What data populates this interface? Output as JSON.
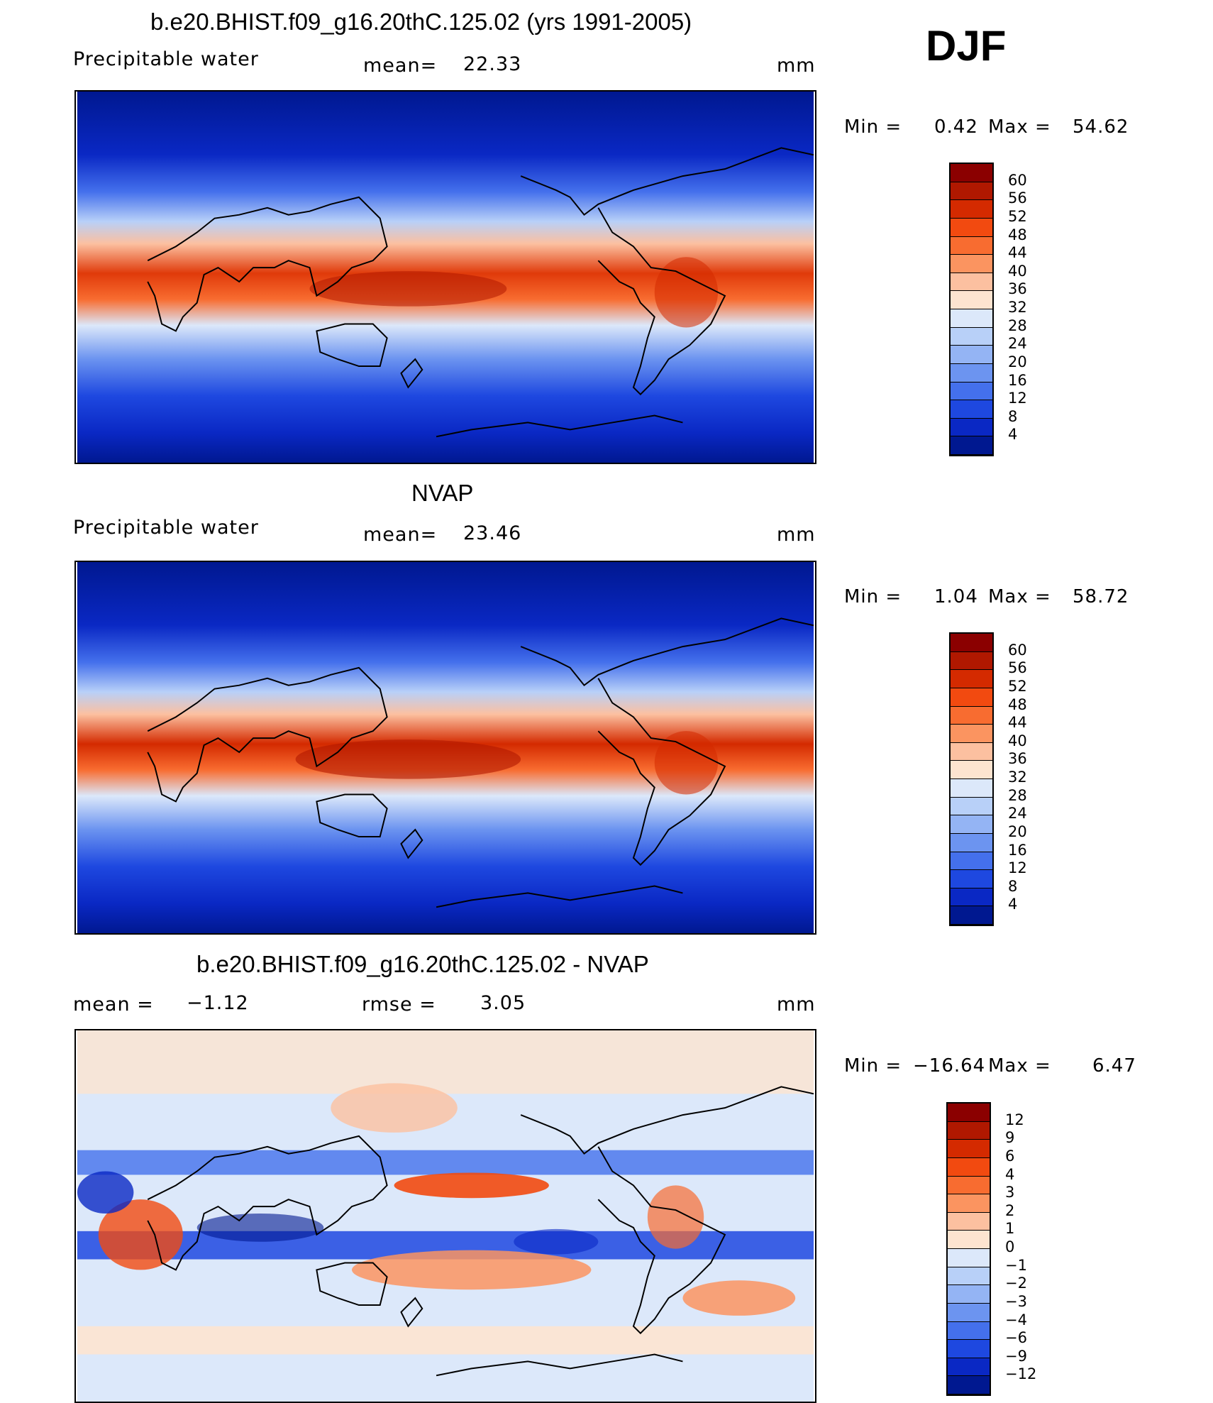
{
  "season": "DJF",
  "panels": [
    {
      "title": "b.e20.BHIST.f09_g16.20thC.125.02 (yrs 1991-2005)",
      "left_label": "Precipitable  water",
      "mid_label": "mean=",
      "mid_value": "22.33",
      "units": "mm",
      "min_label": "Min  =",
      "min_value": "0.42",
      "max_label": "Max  =",
      "max_value": "54.62",
      "kind": "abs"
    },
    {
      "title": "NVAP",
      "left_label": "Precipitable  water",
      "mid_label": "mean=",
      "mid_value": "23.46",
      "units": "mm",
      "min_label": "Min  =",
      "min_value": "1.04",
      "max_label": "Max  =",
      "max_value": "58.72",
      "kind": "abs"
    },
    {
      "title": "b.e20.BHIST.f09_g16.20thC.125.02 - NVAP",
      "left_label": "mean  =",
      "left_value": "−1.12",
      "mid_label": "rmse  =",
      "mid_value": "3.05",
      "units": "mm",
      "min_label": "Min  =",
      "min_value": "−16.64",
      "max_label": "Max  =",
      "max_value": "6.47",
      "kind": "diff"
    }
  ],
  "colorbar_abs": {
    "labels": [
      "60",
      "56",
      "52",
      "48",
      "44",
      "40",
      "36",
      "32",
      "28",
      "24",
      "20",
      "16",
      "12",
      "8",
      "4"
    ],
    "colors": [
      "#8b0000",
      "#b01800",
      "#d42a00",
      "#f24a10",
      "#f86c30",
      "#fb9460",
      "#fcc0a0",
      "#fde4d0",
      "#dce8fa",
      "#b8d0f8",
      "#94b4f4",
      "#6c94f0",
      "#4470ec",
      "#1e48e0",
      "#0a28c4",
      "#001890"
    ]
  },
  "colorbar_diff": {
    "labels": [
      "12",
      "9",
      "6",
      "4",
      "3",
      "2",
      "1",
      "0",
      "−1",
      "−2",
      "−3",
      "−4",
      "−6",
      "−9",
      "−12"
    ],
    "colors": [
      "#8b0000",
      "#b01800",
      "#d42a00",
      "#f24a10",
      "#f86c30",
      "#fb9460",
      "#fcc0a0",
      "#fde4d0",
      "#dce8fa",
      "#b8d0f8",
      "#94b4f4",
      "#6c94f0",
      "#4470ec",
      "#1e48e0",
      "#0a28c4",
      "#001890"
    ]
  }
}
